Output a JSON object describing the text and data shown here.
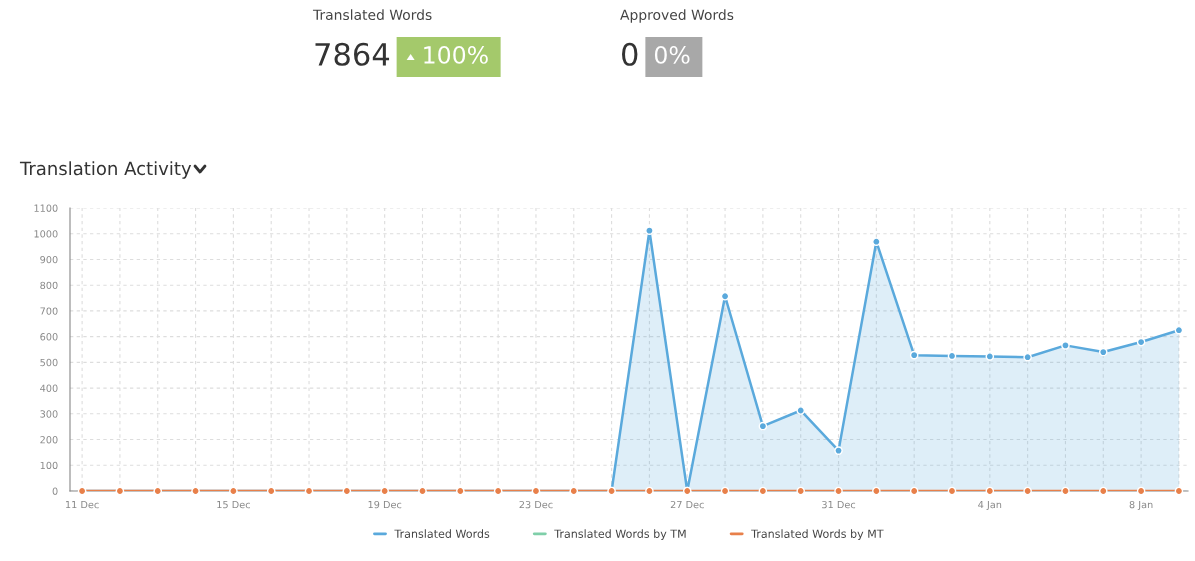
{
  "chart_data": {
    "type": "area",
    "title": "Translation Activity",
    "annotations": [
      "Translated Words",
      "7864",
      "100%",
      "Approved Words",
      "0",
      "0%"
    ],
    "categories": [
      "11 Dec",
      null,
      null,
      null,
      "15 Dec",
      null,
      null,
      null,
      "19 Dec",
      null,
      null,
      null,
      "23 Dec",
      null,
      null,
      null,
      "27 Dec",
      null,
      null,
      null,
      "31 Dec",
      null,
      null,
      null,
      "4 Jan",
      null,
      null,
      null,
      "8 Jan",
      null
    ],
    "series": [
      {
        "name": "Translated Words",
        "color": "#5aa9dc",
        "values": [
          0,
          0,
          0,
          0,
          0,
          0,
          0,
          0,
          0,
          0,
          0,
          0,
          0,
          0,
          0,
          1012,
          0,
          757,
          252,
          313,
          157,
          969,
          528,
          525,
          523,
          520,
          566,
          540,
          579,
          625
        ]
      },
      {
        "name": "Translated Words by TM",
        "color": "#7fcfa9",
        "type": "line",
        "values": [
          null,
          null,
          null,
          null,
          null,
          null,
          null,
          null,
          null,
          null,
          null,
          null,
          null,
          null,
          null,
          null,
          null,
          null,
          null,
          null,
          null,
          null,
          null,
          null,
          null,
          null,
          null,
          null,
          null,
          null
        ]
      },
      {
        "name": "Translated Words by MT",
        "color": "#e8804a",
        "type": "line",
        "values": [
          0,
          0,
          0,
          0,
          0,
          0,
          0,
          0,
          0,
          0,
          0,
          0,
          0,
          0,
          0,
          0,
          0,
          0,
          0,
          0,
          0,
          0,
          0,
          0,
          0,
          0,
          0,
          0,
          0,
          0
        ]
      }
    ],
    "ylim": [
      0,
      1100
    ],
    "yticks": [
      0,
      100,
      200,
      300,
      400,
      500,
      600,
      700,
      800,
      900,
      1000,
      1100
    ],
    "grid": true,
    "legend": "bottom",
    "marker": "circle",
    "line_style": "solid"
  }
}
